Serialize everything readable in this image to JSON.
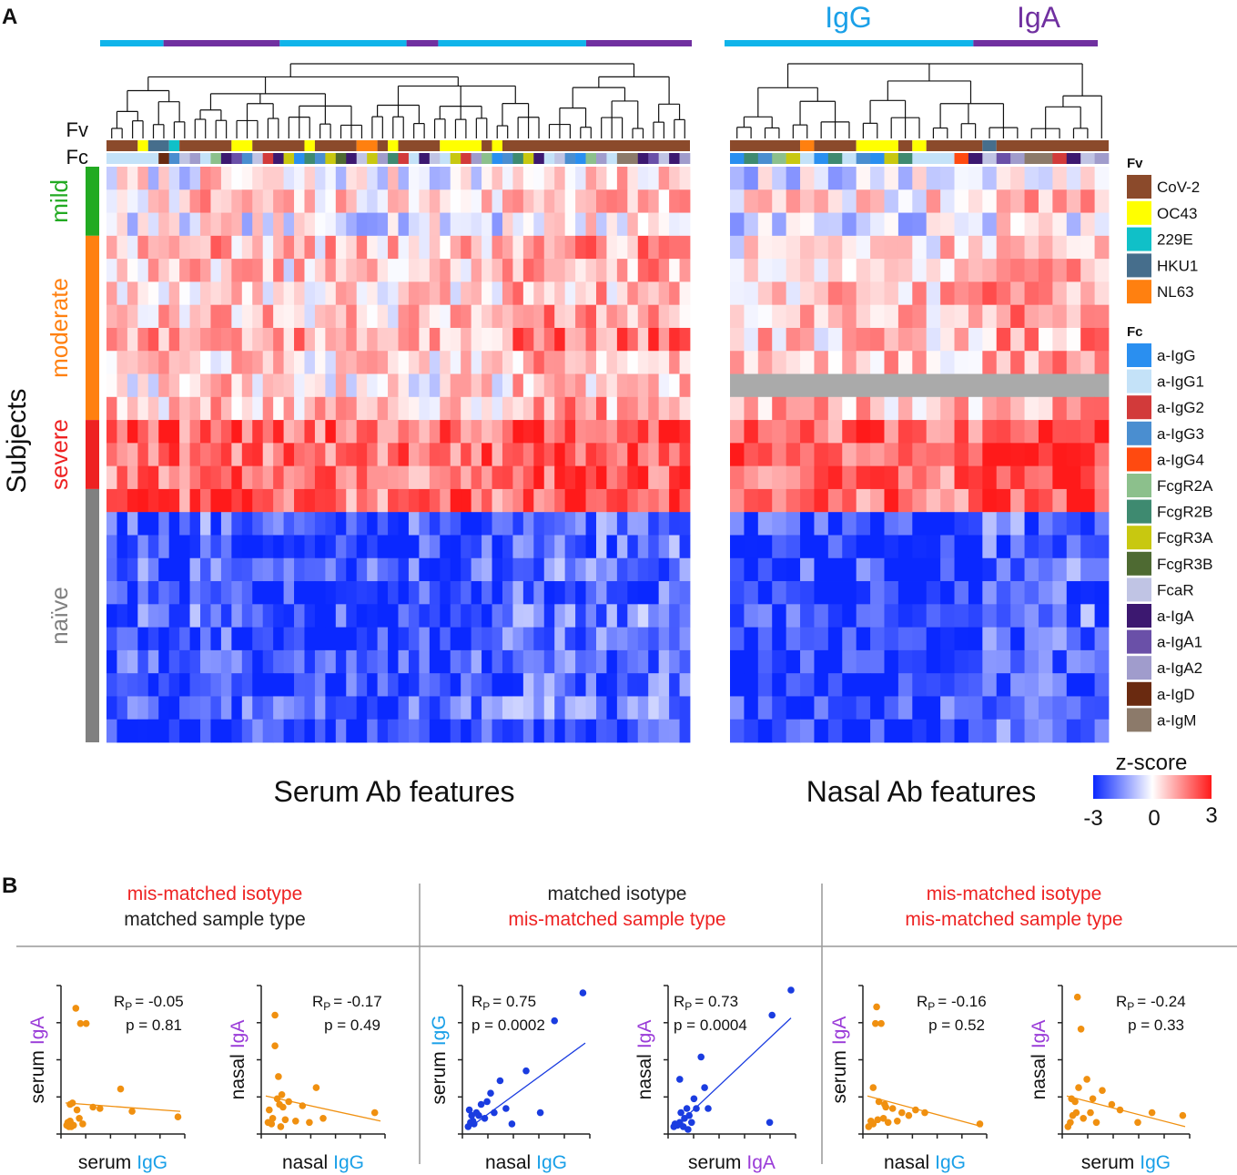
{
  "panel_a": {
    "label": "A",
    "row_label_fv": "Fv",
    "row_label_fc": "Fc",
    "header_igg": "IgG",
    "header_iga": "IgA",
    "subjects_label": "Subjects",
    "groups": [
      {
        "name": "mild",
        "color": "#22aa22",
        "rows": 3
      },
      {
        "name": "moderate",
        "color": "#ff8010",
        "rows": 8
      },
      {
        "name": "severe",
        "color": "#ee2222",
        "rows": 3
      },
      {
        "name": "naïve",
        "color": "#808080",
        "rows": 11
      }
    ],
    "serum_title": "Serum Ab features",
    "nasal_title": "Nasal Ab features",
    "colorbar": {
      "title": "z-score",
      "min": "-3",
      "mid": "0",
      "max": "3"
    },
    "legend_fv_title": "Fv",
    "legend_fv": [
      {
        "name": "CoV-2",
        "color": "#8b4a2b"
      },
      {
        "name": "OC43",
        "color": "#ffff00"
      },
      {
        "name": "229E",
        "color": "#10c0c8"
      },
      {
        "name": "HKU1",
        "color": "#466e8c"
      },
      {
        "name": "NL63",
        "color": "#ff8010"
      }
    ],
    "legend_fc_title": "Fc",
    "legend_fc": [
      {
        "name": "a-IgG",
        "color": "#2a8ff0"
      },
      {
        "name": "a-IgG1",
        "color": "#c4e2f8"
      },
      {
        "name": "a-IgG2",
        "color": "#d23a3a"
      },
      {
        "name": "a-IgG3",
        "color": "#4a8ed0"
      },
      {
        "name": "a-IgG4",
        "color": "#ff4a10"
      },
      {
        "name": "FcgR2A",
        "color": "#8cc08c"
      },
      {
        "name": "FcgR2B",
        "color": "#3e8a70"
      },
      {
        "name": "FcgR3A",
        "color": "#c8c810"
      },
      {
        "name": "FcgR3B",
        "color": "#4e6a32"
      },
      {
        "name": "FcaR",
        "color": "#c0c4e4"
      },
      {
        "name": "a-IgA",
        "color": "#3c1870"
      },
      {
        "name": "a-IgA1",
        "color": "#6a50a8"
      },
      {
        "name": "a-IgA2",
        "color": "#a09ccc"
      },
      {
        "name": "a-IgD",
        "color": "#6a2a10"
      },
      {
        "name": "a-IgM",
        "color": "#8c7a6a"
      }
    ]
  },
  "panel_b": {
    "label": "B",
    "sections": [
      {
        "line1": "mis-matched isotype",
        "line1_color": "#ee2222",
        "line2": "matched sample type",
        "line2_color": "#222222"
      },
      {
        "line1": "matched isotype",
        "line1_color": "#222222",
        "line2": "mis-matched sample type",
        "line2_color": "#ee2222"
      },
      {
        "line1": "mis-matched isotype",
        "line1_color": "#ee2222",
        "line2": "mis-matched sample type",
        "line2_color": "#ee2222"
      }
    ]
  },
  "chart_data": [
    {
      "type": "scatter",
      "name": "serum IgA vs serum IgG",
      "xlabel_a": "serum",
      "xlabel_b": "IgG",
      "xlabel_b_color": "#1aa0e8",
      "ylabel_a": "serum",
      "ylabel_b": "IgA",
      "ylabel_b_color": "#9a3cd8",
      "r_label": "R",
      "r_sub": "P",
      "r_value": "= -0.05",
      "p_text": "p = 0.81",
      "color": "#f09010",
      "xlim": [
        0,
        1
      ],
      "ylim": [
        0,
        1
      ],
      "x": [
        0.01,
        0.02,
        0.03,
        0.04,
        0.05,
        0.06,
        0.07,
        0.04,
        0.09,
        0.13,
        0.18,
        0.24,
        0.3,
        0.05,
        0.1,
        0.15,
        0.12,
        0.48,
        0.58,
        0.98
      ],
      "y": [
        0.03,
        0.05,
        0.02,
        0.06,
        0.04,
        0.19,
        0.03,
        0.18,
        0.87,
        0.76,
        0.76,
        0.16,
        0.15,
        0.02,
        0.14,
        0.04,
        0.08,
        0.29,
        0.13,
        0.09
      ],
      "fit": [
        [
          0.0,
          0.19
        ],
        [
          1.0,
          0.13
        ]
      ]
    },
    {
      "type": "scatter",
      "name": "nasal IgA vs nasal IgG",
      "xlabel_a": "nasal",
      "xlabel_b": "IgG",
      "xlabel_b_color": "#1aa0e8",
      "ylabel_a": "nasal",
      "ylabel_b": "IgA",
      "ylabel_b_color": "#9a3cd8",
      "r_label": "R",
      "r_sub": "P",
      "r_value": "= -0.17",
      "p_text": "p = 0.49",
      "color": "#f09010",
      "xlim": [
        0,
        1
      ],
      "ylim": [
        0,
        1
      ],
      "x": [
        0.02,
        0.05,
        0.06,
        0.08,
        0.1,
        0.11,
        0.13,
        0.14,
        0.15,
        0.17,
        0.2,
        0.26,
        0.32,
        0.38,
        0.44,
        0.5,
        0.95,
        0.08,
        0.12,
        0.03
      ],
      "y": [
        0.05,
        0.04,
        0.08,
        0.6,
        0.22,
        0.38,
        0.02,
        0.25,
        0.16,
        0.07,
        0.2,
        0.06,
        0.17,
        0.05,
        0.3,
        0.08,
        0.12,
        0.82,
        0.18,
        0.14
      ],
      "fit": [
        [
          0.0,
          0.24
        ],
        [
          1.0,
          0.06
        ]
      ]
    },
    {
      "type": "scatter",
      "name": "serum IgG vs nasal IgG",
      "xlabel_a": "nasal",
      "xlabel_b": "IgG",
      "xlabel_b_color": "#1aa0e8",
      "ylabel_a": "serum",
      "ylabel_b": "IgG",
      "ylabel_b_color": "#1aa0e8",
      "r_label": "R",
      "r_sub": "P",
      "r_value": "= 0.75",
      "p_text": "p = 0.0002",
      "color": "#1a3ce0",
      "xlim": [
        0,
        1
      ],
      "ylim": [
        0,
        1
      ],
      "x": [
        0.01,
        0.03,
        0.04,
        0.06,
        0.08,
        0.1,
        0.12,
        0.15,
        0.17,
        0.2,
        0.23,
        0.28,
        0.33,
        0.38,
        0.5,
        0.62,
        0.74,
        0.98,
        0.05,
        0.02
      ],
      "y": [
        0.02,
        0.05,
        0.1,
        0.04,
        0.12,
        0.1,
        0.18,
        0.08,
        0.2,
        0.26,
        0.12,
        0.35,
        0.15,
        0.04,
        0.42,
        0.12,
        0.78,
        0.98,
        0.06,
        0.14
      ],
      "fit": [
        [
          0.0,
          0.0
        ],
        [
          1.0,
          0.62
        ]
      ]
    },
    {
      "type": "scatter",
      "name": "nasal IgA vs serum IgA",
      "xlabel_a": "serum",
      "xlabel_b": "IgA",
      "xlabel_b_color": "#9a3cd8",
      "ylabel_a": "nasal",
      "ylabel_b": "IgA",
      "ylabel_b_color": "#9a3cd8",
      "r_label": "R",
      "r_sub": "P",
      "r_value": "= 0.73",
      "p_text": "p = 0.0004",
      "color": "#1a3ce0",
      "xlim": [
        0,
        1
      ],
      "ylim": [
        0,
        1
      ],
      "x": [
        0.01,
        0.02,
        0.04,
        0.06,
        0.07,
        0.09,
        0.1,
        0.12,
        0.14,
        0.16,
        0.18,
        0.2,
        0.24,
        0.27,
        0.3,
        0.06,
        0.13,
        0.82,
        0.84,
        1.0
      ],
      "y": [
        0.02,
        0.04,
        0.03,
        0.05,
        0.12,
        0.02,
        0.08,
        0.15,
        0.1,
        0.05,
        0.22,
        0.15,
        0.52,
        0.3,
        0.15,
        0.36,
        0.0,
        0.05,
        0.82,
        1.0
      ],
      "fit": [
        [
          0.0,
          0.0
        ],
        [
          1.0,
          0.8
        ]
      ]
    },
    {
      "type": "scatter",
      "name": "serum IgA vs nasal IgG",
      "xlabel_a": "nasal",
      "xlabel_b": "IgG",
      "xlabel_b_color": "#1aa0e8",
      "ylabel_a": "serum",
      "ylabel_b": "IgA",
      "ylabel_b_color": "#9a3cd8",
      "r_label": "R",
      "r_sub": "P",
      "r_value": "= -0.16",
      "p_text": "p = 0.52",
      "color": "#f09010",
      "xlim": [
        0,
        1
      ],
      "ylim": [
        0,
        1
      ],
      "x": [
        0.01,
        0.03,
        0.05,
        0.07,
        0.08,
        0.1,
        0.12,
        0.14,
        0.16,
        0.18,
        0.22,
        0.26,
        0.3,
        0.36,
        0.42,
        0.5,
        0.98,
        0.05,
        0.09,
        0.15
      ],
      "y": [
        0.02,
        0.06,
        0.04,
        0.76,
        0.88,
        0.2,
        0.76,
        0.08,
        0.16,
        0.05,
        0.15,
        0.06,
        0.12,
        0.1,
        0.14,
        0.12,
        0.04,
        0.3,
        0.07,
        0.18
      ],
      "fit": [
        [
          0.0,
          0.24
        ],
        [
          1.0,
          0.02
        ]
      ]
    },
    {
      "type": "scatter",
      "name": "nasal IgA vs serum IgG",
      "xlabel_a": "serum",
      "xlabel_b": "IgG",
      "xlabel_b_color": "#1aa0e8",
      "ylabel_a": "nasal",
      "ylabel_b": "IgA",
      "ylabel_b_color": "#9a3cd8",
      "r_label": "R",
      "r_sub": "P",
      "r_value": "= -0.24",
      "p_text": "p = 0.33",
      "color": "#f09010",
      "xlim": [
        0,
        1
      ],
      "ylim": [
        0,
        1
      ],
      "x": [
        0.01,
        0.03,
        0.05,
        0.07,
        0.09,
        0.1,
        0.12,
        0.14,
        0.17,
        0.2,
        0.22,
        0.25,
        0.3,
        0.38,
        0.45,
        0.6,
        0.72,
        0.98,
        0.08,
        0.04
      ],
      "y": [
        0.02,
        0.05,
        0.1,
        0.2,
        0.95,
        0.3,
        0.72,
        0.08,
        0.36,
        0.12,
        0.22,
        0.05,
        0.28,
        0.18,
        0.14,
        0.05,
        0.12,
        0.1,
        0.12,
        0.22
      ],
      "fit": [
        [
          0.0,
          0.24
        ],
        [
          1.0,
          0.02
        ]
      ]
    },
    {
      "type": "heatmap",
      "name": "Serum Ab features",
      "rows": 25,
      "columns": 56,
      "vmin": -3,
      "vmax": 3,
      "top_bar": [
        {
          "class": "IgG",
          "cols": 6
        },
        {
          "class": "IgA",
          "cols": 11
        },
        {
          "class": "IgG",
          "cols": 12
        },
        {
          "class": "IgA",
          "cols": 3
        },
        {
          "class": "IgG",
          "cols": 14
        },
        {
          "class": "IgA",
          "cols": 10
        }
      ],
      "fv_blocks": [
        [
          "CoV-2",
          3
        ],
        [
          "OC43",
          1
        ],
        [
          "HKU1",
          2
        ],
        [
          "229E",
          1
        ],
        [
          "CoV-2",
          5
        ],
        [
          "OC43",
          2
        ],
        [
          "CoV-2",
          5
        ],
        [
          "OC43",
          1
        ],
        [
          "CoV-2",
          4
        ],
        [
          "NL63",
          2
        ],
        [
          "CoV-2",
          1
        ],
        [
          "OC43",
          1
        ],
        [
          "CoV-2",
          4
        ],
        [
          "OC43",
          4
        ],
        [
          "CoV-2",
          1
        ],
        [
          "OC43",
          1
        ],
        [
          "CoV-2",
          18
        ]
      ],
      "fc_sequence": [
        "a-IgG1",
        "a-IgG1",
        "a-IgG1",
        "a-IgG1",
        "a-IgG1",
        "a-IgD",
        "a-IgG3",
        "FcaR",
        "a-IgA2",
        "a-IgG1",
        "FcgR2A",
        "a-IgA",
        "a-IgA1",
        "a-IgG3",
        "FcaR",
        "a-IgG2",
        "a-IgA",
        "FcgR3A",
        "a-IgG",
        "FcgR2B",
        "a-IgG3",
        "FcgR3A",
        "FcgR3B",
        "a-IgA",
        "FcaR",
        "FcgR3A",
        "a-IgA2",
        "FcgR2B",
        "a-IgG2",
        "a-IgG1",
        "a-IgA",
        "FcaR",
        "a-IgG1",
        "FcgR3A",
        "a-IgG2",
        "a-IgA2",
        "FcgR2A",
        "a-IgG",
        "a-IgG3",
        "FcgR2B",
        "FcgR3A",
        "a-IgA",
        "a-IgG1",
        "FcaR",
        "a-IgG3",
        "a-IgG",
        "FcgR2A",
        "a-IgA2",
        "a-IgG1",
        "a-IgM",
        "a-IgM",
        "a-IgA",
        "a-IgA1",
        "FcaR",
        "a-IgA",
        "a-IgA2"
      ],
      "row_bias": [
        -0.1,
        0.2,
        -0.2,
        0.35,
        0.25,
        0.15,
        0.3,
        0.55,
        0.15,
        0.1,
        0.3,
        0.95,
        0.85,
        0.8,
        0.9,
        -1.25,
        -1.3,
        -1.2,
        -1.4,
        -1.2,
        -1.35,
        -1.25,
        -1.3,
        -1.15,
        -1.4
      ],
      "col_bias": [
        0.05,
        0.05,
        0.1,
        0.15,
        0.05,
        0.05,
        0.0,
        0.0,
        0.25,
        0.3,
        0.2,
        0.2,
        0.15,
        0.1,
        0.2,
        0.1,
        0.1,
        0.0,
        0.05,
        0.0,
        0.0,
        0.05,
        0.05,
        0.0,
        0.0,
        0.05,
        -0.05,
        0.0,
        0.0,
        0.1,
        0.05,
        0.0,
        0.05,
        0.0,
        0.05,
        0.1,
        0.05,
        0.0,
        0.3,
        0.35,
        0.3,
        0.3,
        0.3,
        0.35,
        0.3,
        0.35,
        0.3,
        0.3,
        0.25,
        0.3,
        0.3,
        0.35,
        0.3,
        0.3,
        0.35,
        0.3
      ],
      "noise_amplitude": 0.6,
      "seed": 7
    },
    {
      "type": "heatmap",
      "name": "Nasal Ab features",
      "rows": 25,
      "columns": 27,
      "vmin": -3,
      "vmax": 3,
      "missing_row": 9,
      "top_bar": [
        {
          "class": "IgG",
          "cols": 18
        },
        {
          "class": "IgA",
          "cols": 9
        }
      ],
      "fv_blocks": [
        [
          "CoV-2",
          5
        ],
        [
          "NL63",
          1
        ],
        [
          "CoV-2",
          3
        ],
        [
          "OC43",
          3
        ],
        [
          "CoV-2",
          1
        ],
        [
          "OC43",
          1
        ],
        [
          "CoV-2",
          4
        ],
        [
          "HKU1",
          1
        ],
        [
          "CoV-2",
          8
        ]
      ],
      "fc_sequence": [
        "a-IgG",
        "FcgR2B",
        "a-IgG3",
        "FcgR2A",
        "FcgR3A",
        "a-IgG1",
        "a-IgG",
        "FcgR2B",
        "a-IgG1",
        "a-IgG3",
        "a-IgG",
        "FcgR3A",
        "FcgR2B",
        "a-IgG1",
        "a-IgG1",
        "a-IgG1",
        "a-IgG4",
        "a-IgA",
        "FcaR",
        "a-IgA1",
        "a-IgA2",
        "a-IgM",
        "a-IgM",
        "a-IgG2",
        "a-IgA",
        "FcaR",
        "a-IgA2"
      ],
      "row_bias": [
        -0.2,
        0.15,
        -0.3,
        0.2,
        0.2,
        0.4,
        0.35,
        0.3,
        0.35,
        0.0,
        0.4,
        1.0,
        1.1,
        0.95,
        0.9,
        -1.3,
        -1.35,
        -1.25,
        -1.4,
        -1.2,
        -1.4,
        -1.3,
        -1.35,
        -1.2,
        -1.4
      ],
      "col_bias": [
        0.0,
        0.0,
        0.05,
        0.0,
        0.0,
        0.05,
        0.0,
        0.0,
        0.0,
        0.05,
        0.0,
        0.0,
        0.0,
        -0.05,
        0.0,
        0.0,
        0.0,
        0.0,
        0.3,
        0.35,
        0.3,
        0.25,
        0.3,
        0.35,
        0.3,
        0.35,
        0.3
      ],
      "noise_amplitude": 0.6,
      "seed": 19
    }
  ]
}
